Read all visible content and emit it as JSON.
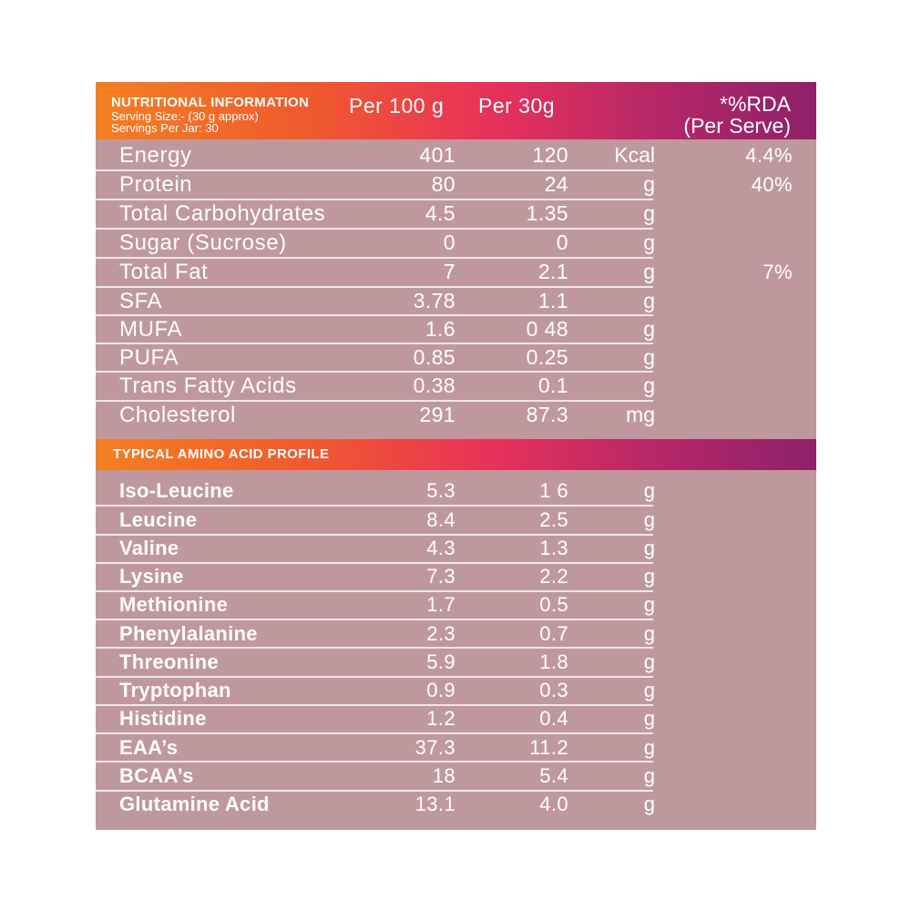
{
  "header": {
    "title": "NUTRITIONAL INFORMATION",
    "serving_size": "Serving Size:- (30 g approx)",
    "servings_per_jar": "Servings Per Jar: 30",
    "col_per100": "Per 100 g",
    "col_per30": "Per  30g",
    "col_rda_line1": "*%RDA",
    "col_rda_line2": "(Per Serve)"
  },
  "nutrition_rows": [
    {
      "name": "Energy",
      "per100": "401",
      "per30": "120",
      "unit": "Kcal",
      "rda": "4.4%"
    },
    {
      "name": "Protein",
      "per100": "80",
      "per30": "24",
      "unit": "g",
      "rda": "40%"
    },
    {
      "name": "Total Carbohydrates",
      "per100": "4.5",
      "per30": "1.35",
      "unit": "g",
      "rda": ""
    },
    {
      "name": "Sugar (Sucrose)",
      "per100": "0",
      "per30": "0",
      "unit": "g",
      "rda": ""
    },
    {
      "name": "Total Fat",
      "per100": "7",
      "per30": "2.1",
      "unit": "g",
      "rda": "7%"
    },
    {
      "name": "SFA",
      "per100": "3.78",
      "per30": "1.1",
      "unit": "g",
      "rda": ""
    },
    {
      "name": "MUFA",
      "per100": "1.6",
      "per30": "0 48",
      "unit": "g",
      "rda": ""
    },
    {
      "name": "PUFA",
      "per100": "0.85",
      "per30": "0.25",
      "unit": "g",
      "rda": ""
    },
    {
      "name": "Trans Fatty Acids",
      "per100": "0.38",
      "per30": "0.1",
      "unit": "g",
      "rda": ""
    },
    {
      "name": "Cholesterol",
      "per100": "291",
      "per30": "87.3",
      "unit": "mg",
      "rda": ""
    }
  ],
  "amino_section": {
    "title": "TYPICAL AMINO ACID PROFILE"
  },
  "amino_rows": [
    {
      "name": "Iso-Leucine",
      "per100": "5.3",
      "per30": "1 6",
      "unit": "g"
    },
    {
      "name": "Leucine",
      "per100": "8.4",
      "per30": "2.5",
      "unit": "g"
    },
    {
      "name": "Valine",
      "per100": "4.3",
      "per30": "1.3",
      "unit": "g"
    },
    {
      "name": "Lysine",
      "per100": "7.3",
      "per30": "2.2",
      "unit": "g"
    },
    {
      "name": "Methionine",
      "per100": "1.7",
      "per30": "0.5",
      "unit": "g"
    },
    {
      "name": "Phenylalanine",
      "per100": "2.3",
      "per30": "0.7",
      "unit": "g"
    },
    {
      "name": "Threonine",
      "per100": "5.9",
      "per30": "1.8",
      "unit": "g"
    },
    {
      "name": "Tryptophan",
      "per100": "0.9",
      "per30": "0.3",
      "unit": "g"
    },
    {
      "name": "Histidine",
      "per100": "1.2",
      "per30": "0.4",
      "unit": "g"
    },
    {
      "name": "EAA’s",
      "per100": "37.3",
      "per30": "11.2",
      "unit": "g"
    },
    {
      "name": "BCAA’s",
      "per100": "18",
      "per30": "5.4",
      "unit": "g"
    },
    {
      "name": "Glutamine Acid",
      "per100": "13.1",
      "per30": "4.0",
      "unit": "g"
    }
  ],
  "colors": {
    "panel_bg": "#bf989d",
    "gradient_start": "#f47f22",
    "gradient_end": "#8e2169",
    "text": "#ffffff"
  }
}
